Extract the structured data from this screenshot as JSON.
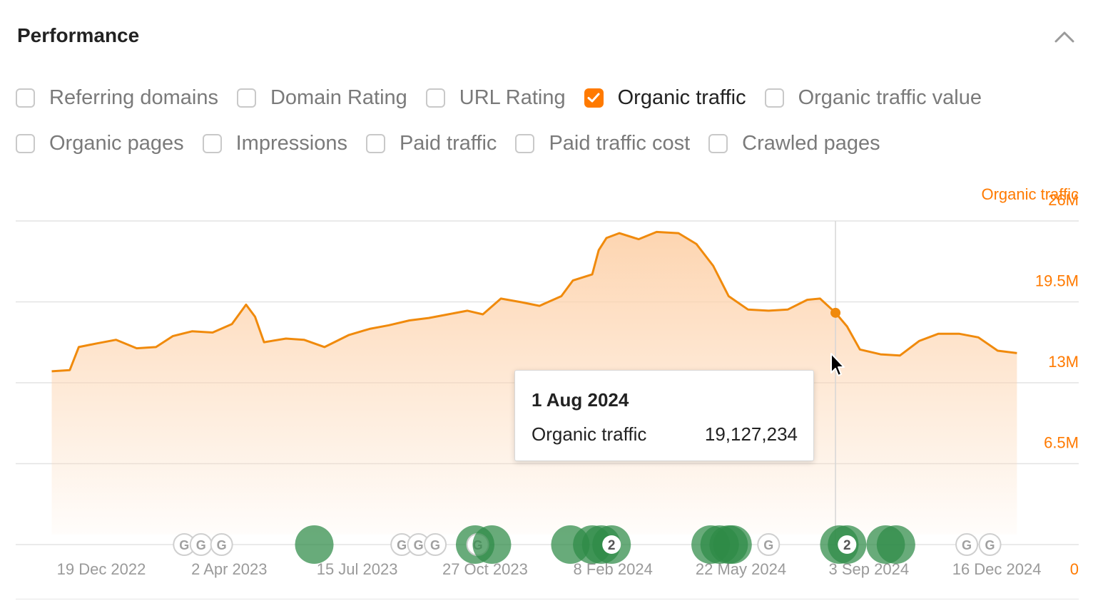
{
  "header": {
    "title": "Performance"
  },
  "metrics": {
    "row1": [
      {
        "label": "Referring domains",
        "checked": false
      },
      {
        "label": "Domain Rating",
        "checked": false
      },
      {
        "label": "URL Rating",
        "checked": false
      },
      {
        "label": "Organic traffic",
        "checked": true
      },
      {
        "label": "Organic traffic value",
        "checked": false
      }
    ],
    "row2": [
      {
        "label": "Organic pages",
        "checked": false
      },
      {
        "label": "Impressions",
        "checked": false
      },
      {
        "label": "Paid traffic",
        "checked": false
      },
      {
        "label": "Paid traffic cost",
        "checked": false
      },
      {
        "label": "Crawled pages",
        "checked": false
      }
    ]
  },
  "tooltip": {
    "date": "1 Aug 2024",
    "label": "Organic traffic",
    "value": "19,127,234"
  },
  "colors": {
    "accent": "#ff7a00",
    "series_line": "#f08a0c",
    "area_fill": "#fdd3ad",
    "event_green": "#2e8b46",
    "grid": "#e3e3e3",
    "tick_label": "#9a9a9a"
  },
  "chart_data": {
    "type": "area",
    "ylabel": "Organic traffic",
    "x_tick_labels": [
      "19 Dec 2022",
      "2 Apr 2023",
      "15 Jul 2023",
      "27 Oct 2023",
      "8 Feb 2024",
      "22 May 2024",
      "3 Sep 2024",
      "16 Dec 2024"
    ],
    "y_tick_labels": [
      "0",
      "6.5M",
      "13M",
      "19.5M",
      "26M"
    ],
    "ylim": [
      0,
      26000000
    ],
    "xlim": [
      "2022-11-03",
      "2025-02-06"
    ],
    "grid": true,
    "series": [
      {
        "name": "Organic traffic",
        "points": [
          [
            "2022-12-01",
            14300000
          ],
          [
            "2022-12-15",
            14400000
          ],
          [
            "2022-12-22",
            16300000
          ],
          [
            "2023-01-05",
            16600000
          ],
          [
            "2023-01-20",
            16900000
          ],
          [
            "2023-02-05",
            16200000
          ],
          [
            "2023-02-20",
            16300000
          ],
          [
            "2023-03-05",
            17200000
          ],
          [
            "2023-03-20",
            17600000
          ],
          [
            "2023-04-05",
            17500000
          ],
          [
            "2023-04-20",
            18200000
          ],
          [
            "2023-05-01",
            19800000
          ],
          [
            "2023-05-08",
            18800000
          ],
          [
            "2023-05-15",
            16700000
          ],
          [
            "2023-06-01",
            17000000
          ],
          [
            "2023-06-15",
            16900000
          ],
          [
            "2023-07-01",
            16300000
          ],
          [
            "2023-07-20",
            17300000
          ],
          [
            "2023-08-05",
            17800000
          ],
          [
            "2023-08-20",
            18100000
          ],
          [
            "2023-09-05",
            18500000
          ],
          [
            "2023-09-20",
            18700000
          ],
          [
            "2023-10-05",
            19000000
          ],
          [
            "2023-10-20",
            19300000
          ],
          [
            "2023-11-01",
            19000000
          ],
          [
            "2023-11-15",
            20300000
          ],
          [
            "2023-12-01",
            20000000
          ],
          [
            "2023-12-15",
            19700000
          ],
          [
            "2024-01-01",
            20500000
          ],
          [
            "2024-01-10",
            21800000
          ],
          [
            "2024-01-25",
            22300000
          ],
          [
            "2024-01-30",
            24300000
          ],
          [
            "2024-02-05",
            25300000
          ],
          [
            "2024-02-15",
            25700000
          ],
          [
            "2024-03-01",
            25200000
          ],
          [
            "2024-03-15",
            25800000
          ],
          [
            "2024-04-01",
            25700000
          ],
          [
            "2024-04-15",
            24800000
          ],
          [
            "2024-04-28",
            23000000
          ],
          [
            "2024-05-10",
            20500000
          ],
          [
            "2024-05-25",
            19400000
          ],
          [
            "2024-06-10",
            19300000
          ],
          [
            "2024-06-25",
            19400000
          ],
          [
            "2024-07-10",
            20200000
          ],
          [
            "2024-07-20",
            20300000
          ],
          [
            "2024-08-01",
            19127234
          ],
          [
            "2024-08-10",
            18000000
          ],
          [
            "2024-08-20",
            16100000
          ],
          [
            "2024-09-05",
            15700000
          ],
          [
            "2024-09-20",
            15600000
          ],
          [
            "2024-10-05",
            16800000
          ],
          [
            "2024-10-20",
            17400000
          ],
          [
            "2024-11-05",
            17400000
          ],
          [
            "2024-11-20",
            17100000
          ],
          [
            "2024-12-05",
            16000000
          ],
          [
            "2024-12-20",
            15800000
          ]
        ]
      }
    ],
    "events": [
      {
        "date": "2023-03-14",
        "kind": "google"
      },
      {
        "date": "2023-03-27",
        "kind": "google"
      },
      {
        "date": "2023-04-12",
        "kind": "google"
      },
      {
        "date": "2023-06-23",
        "kind": "annotation"
      },
      {
        "date": "2023-08-30",
        "kind": "google"
      },
      {
        "date": "2023-09-12",
        "kind": "google"
      },
      {
        "date": "2023-09-25",
        "kind": "google"
      },
      {
        "date": "2023-10-26",
        "kind": "annotation"
      },
      {
        "date": "2023-10-28",
        "kind": "google"
      },
      {
        "date": "2023-11-08",
        "kind": "annotation"
      },
      {
        "date": "2024-01-08",
        "kind": "annotation"
      },
      {
        "date": "2024-01-25",
        "kind": "annotation"
      },
      {
        "date": "2024-02-01",
        "kind": "annotation"
      },
      {
        "date": "2024-02-09",
        "kind": "annotation",
        "count": 2
      },
      {
        "date": "2024-04-26",
        "kind": "annotation"
      },
      {
        "date": "2024-05-03",
        "kind": "annotation"
      },
      {
        "date": "2024-05-10",
        "kind": "annotation"
      },
      {
        "date": "2024-05-13",
        "kind": "annotation"
      },
      {
        "date": "2024-06-10",
        "kind": "google"
      },
      {
        "date": "2024-08-04",
        "kind": "annotation"
      },
      {
        "date": "2024-08-10",
        "kind": "annotation",
        "count": 2
      },
      {
        "date": "2024-09-09",
        "kind": "annotation"
      },
      {
        "date": "2024-09-17",
        "kind": "annotation"
      },
      {
        "date": "2024-11-11",
        "kind": "google"
      },
      {
        "date": "2024-11-29",
        "kind": "google"
      }
    ],
    "hover": {
      "date": "2024-08-01",
      "value": 19127234
    }
  }
}
